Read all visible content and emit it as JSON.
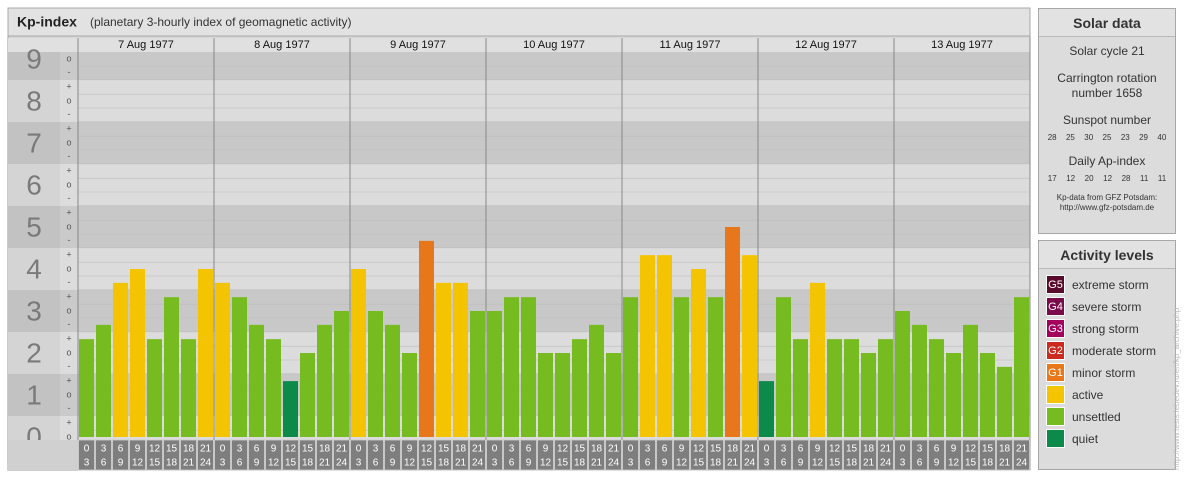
{
  "chart_data": {
    "type": "bar",
    "title": "Kp-index",
    "subtitle": "(planetary 3-hourly index of geomagnetic activity)",
    "ylim": [
      0,
      9
    ],
    "yticks": [
      0,
      1,
      2,
      3,
      4,
      5,
      6,
      7,
      8,
      9
    ],
    "minor_yticks": [
      {
        "value": 0,
        "label": "o"
      },
      {
        "value": 0.33,
        "label": "+"
      },
      {
        "value": 0.67,
        "label": "-"
      },
      {
        "value": 1,
        "label": "o"
      },
      {
        "value": 1.33,
        "label": "+"
      },
      {
        "value": 1.67,
        "label": "-"
      },
      {
        "value": 2,
        "label": "o"
      },
      {
        "value": 2.33,
        "label": "+"
      },
      {
        "value": 2.67,
        "label": "-"
      },
      {
        "value": 3,
        "label": "o"
      },
      {
        "value": 3.33,
        "label": "+"
      },
      {
        "value": 3.67,
        "label": "-"
      },
      {
        "value": 4,
        "label": "o"
      },
      {
        "value": 4.33,
        "label": "+"
      },
      {
        "value": 4.67,
        "label": "-"
      },
      {
        "value": 5,
        "label": "o"
      },
      {
        "value": 5.33,
        "label": "+"
      },
      {
        "value": 5.67,
        "label": "-"
      },
      {
        "value": 6,
        "label": "o"
      },
      {
        "value": 6.33,
        "label": "+"
      },
      {
        "value": 6.67,
        "label": "-"
      },
      {
        "value": 7,
        "label": "o"
      },
      {
        "value": 7.33,
        "label": "+"
      },
      {
        "value": 7.67,
        "label": "-"
      },
      {
        "value": 8,
        "label": "o"
      },
      {
        "value": 8.33,
        "label": "+"
      },
      {
        "value": 8.67,
        "label": "-"
      },
      {
        "value": 9,
        "label": "o"
      }
    ],
    "hours": [
      [
        0,
        3
      ],
      [
        3,
        6
      ],
      [
        6,
        9
      ],
      [
        9,
        12
      ],
      [
        12,
        15
      ],
      [
        15,
        18
      ],
      [
        18,
        21
      ],
      [
        21,
        24
      ]
    ],
    "days": [
      {
        "date": "7 Aug 1977",
        "values": [
          2.33,
          2.67,
          3.67,
          4,
          2.33,
          3.33,
          2.33,
          4
        ],
        "colors": [
          "#76bc21",
          "#76bc21",
          "#f5c400",
          "#f5c400",
          "#76bc21",
          "#76bc21",
          "#76bc21",
          "#f5c400"
        ]
      },
      {
        "date": "8 Aug 1977",
        "values": [
          3.67,
          3.33,
          2.67,
          2.33,
          1.33,
          2,
          2.67,
          3
        ],
        "colors": [
          "#f5c400",
          "#76bc21",
          "#76bc21",
          "#76bc21",
          "#0b8a4a",
          "#76bc21",
          "#76bc21",
          "#76bc21"
        ]
      },
      {
        "date": "9 Aug 1977",
        "values": [
          4,
          3,
          2.67,
          2,
          4.67,
          3.67,
          3.67,
          3
        ],
        "colors": [
          "#f5c400",
          "#76bc21",
          "#76bc21",
          "#76bc21",
          "#e8761a",
          "#f5c400",
          "#f5c400",
          "#76bc21"
        ]
      },
      {
        "date": "10 Aug 1977",
        "values": [
          3,
          3.33,
          3.33,
          2,
          2,
          2.33,
          2.67,
          2
        ],
        "colors": [
          "#76bc21",
          "#76bc21",
          "#76bc21",
          "#76bc21",
          "#76bc21",
          "#76bc21",
          "#76bc21",
          "#76bc21"
        ]
      },
      {
        "date": "11 Aug 1977",
        "values": [
          3.33,
          4.33,
          4.33,
          3.33,
          4,
          3.33,
          5,
          4.33
        ],
        "colors": [
          "#76bc21",
          "#f5c400",
          "#f5c400",
          "#76bc21",
          "#f5c400",
          "#76bc21",
          "#e8761a",
          "#f5c400"
        ]
      },
      {
        "date": "12 Aug 1977",
        "values": [
          1.33,
          3.33,
          2.33,
          3.67,
          2.33,
          2.33,
          2,
          2.33
        ],
        "colors": [
          "#0b8a4a",
          "#76bc21",
          "#76bc21",
          "#f5c400",
          "#76bc21",
          "#76bc21",
          "#76bc21",
          "#76bc21"
        ]
      },
      {
        "date": "13 Aug 1977",
        "values": [
          3,
          2.67,
          2.33,
          2,
          2.67,
          2,
          1.67,
          3.33
        ],
        "colors": [
          "#76bc21",
          "#76bc21",
          "#76bc21",
          "#76bc21",
          "#76bc21",
          "#76bc21",
          "#76bc21",
          "#76bc21"
        ]
      }
    ]
  },
  "solar_data": {
    "title": "Solar data",
    "cycle": "Solar cycle 21",
    "carrington": "Carrington rotation number 1658",
    "sunspot_label": "Sunspot number",
    "sunspots": [
      28,
      25,
      30,
      25,
      23,
      29,
      40
    ],
    "ap_label": "Daily Ap-index",
    "ap": [
      17,
      12,
      20,
      12,
      28,
      11,
      11
    ],
    "source": "Kp-data from GFZ Potsdam:",
    "source_url": "http://www.gfz-potsdam.de"
  },
  "activity_levels": {
    "title": "Activity levels",
    "items": [
      {
        "badge": "G5",
        "name": "extreme storm",
        "color": "#5a0a2a"
      },
      {
        "badge": "G4",
        "name": "severe storm",
        "color": "#7a0a48"
      },
      {
        "badge": "G3",
        "name": "strong storm",
        "color": "#a3005e"
      },
      {
        "badge": "G2",
        "name": "moderate storm",
        "color": "#cc2a1e"
      },
      {
        "badge": "G1",
        "name": "minor storm",
        "color": "#e8761a"
      },
      {
        "name": "active",
        "color": "#f5c400"
      },
      {
        "name": "unsettled",
        "color": "#76bc21"
      },
      {
        "name": "quiet",
        "color": "#0b8a4a"
      }
    ]
  },
  "watermark": "http://www.tesis.lebedev.ru/en/kp_archive.php"
}
